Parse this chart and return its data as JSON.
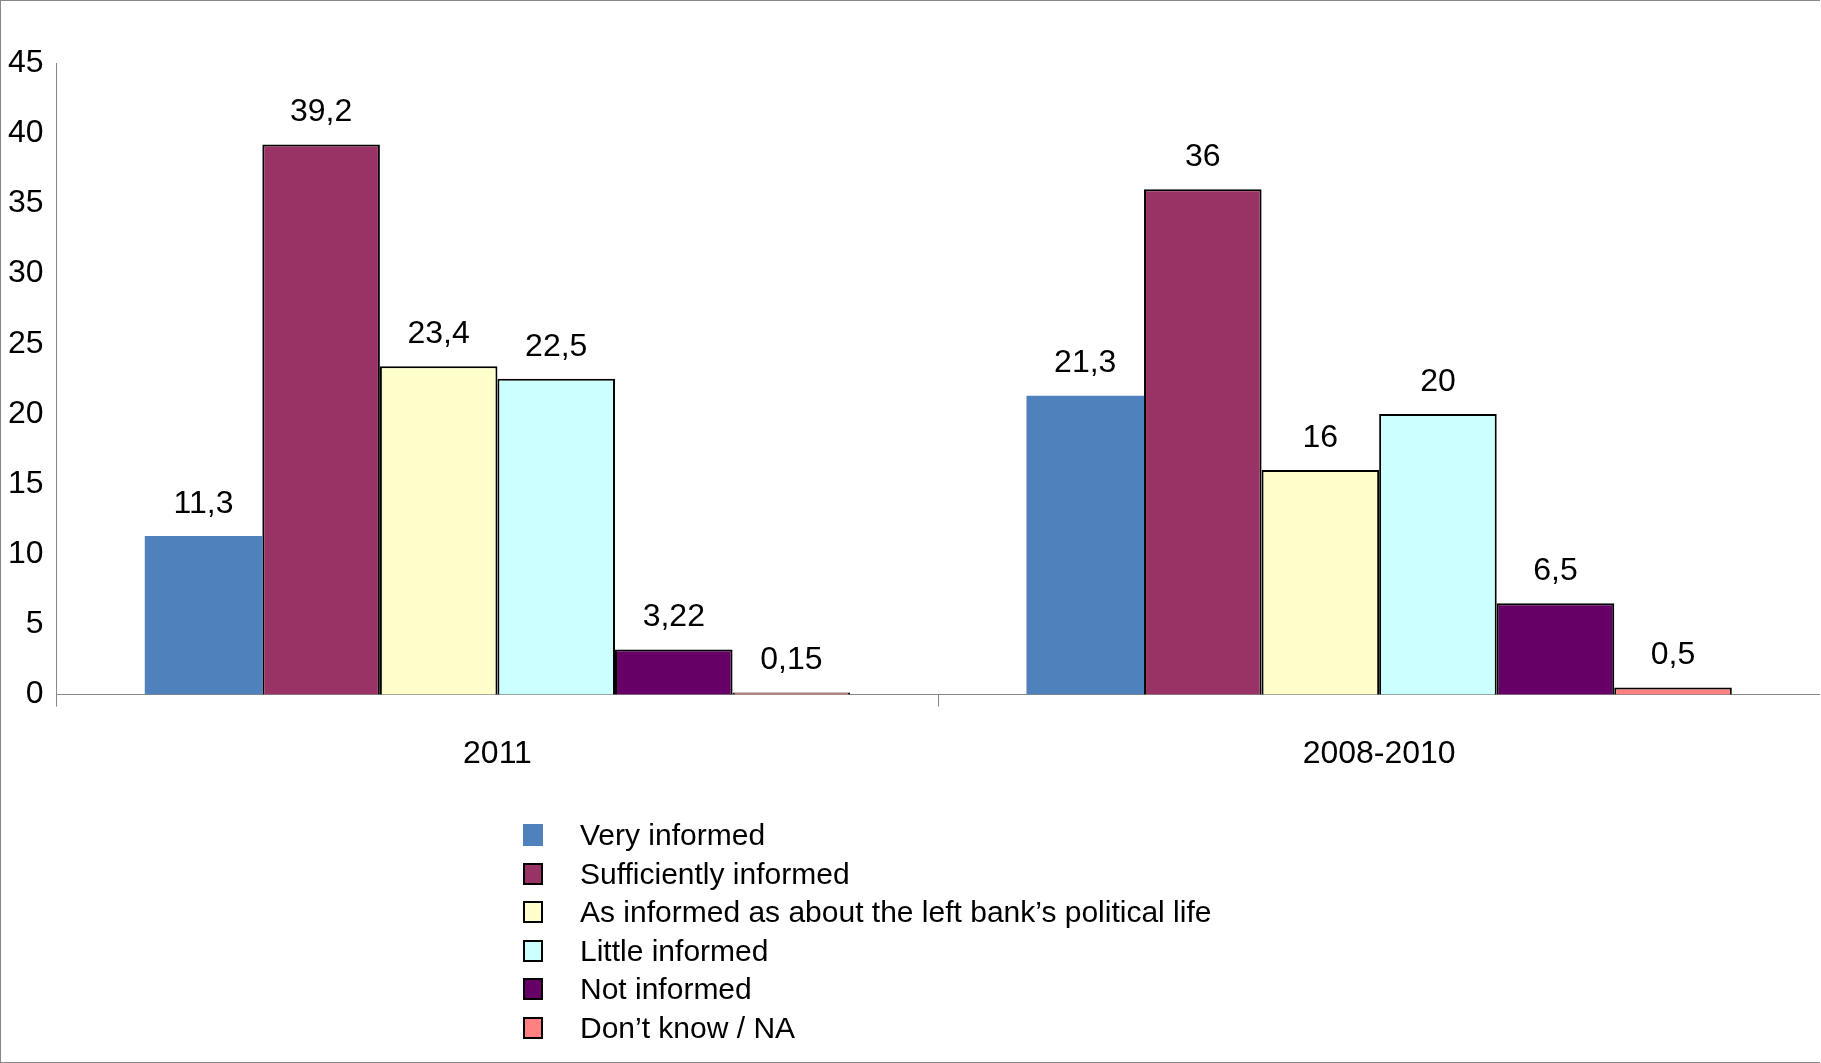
{
  "chart_data": {
    "type": "bar",
    "categories": [
      "2011",
      "2008-2010"
    ],
    "series": [
      {
        "name": "Very informed",
        "color": "#4f81bd",
        "values": [
          11.3,
          21.3
        ],
        "value_labels": [
          "11,3",
          "21,3"
        ]
      },
      {
        "name": "Sufficiently informed",
        "color": "#993366",
        "values": [
          39.2,
          36
        ],
        "value_labels": [
          "39,2",
          "36"
        ]
      },
      {
        "name": "As informed as about  the left bank’s political life",
        "color": "#ffffcc",
        "values": [
          23.4,
          16
        ],
        "value_labels": [
          "23,4",
          "16"
        ]
      },
      {
        "name": "Little informed",
        "color": "#ccffff",
        "values": [
          22.5,
          20
        ],
        "value_labels": [
          "22,5",
          "20"
        ]
      },
      {
        "name": "Not informed",
        "color": "#660066",
        "values": [
          3.22,
          6.5
        ],
        "value_labels": [
          "3,22",
          "6,5"
        ]
      },
      {
        "name": "Don’t know / NA",
        "color": "#ff8080",
        "values": [
          0.15,
          0.5
        ],
        "value_labels": [
          "0,15",
          "0,5"
        ]
      }
    ],
    "ylim": [
      0,
      45
    ],
    "yticks": [
      0,
      5,
      10,
      15,
      20,
      25,
      30,
      35,
      40,
      45
    ],
    "grid": false,
    "legend": "bottom"
  }
}
